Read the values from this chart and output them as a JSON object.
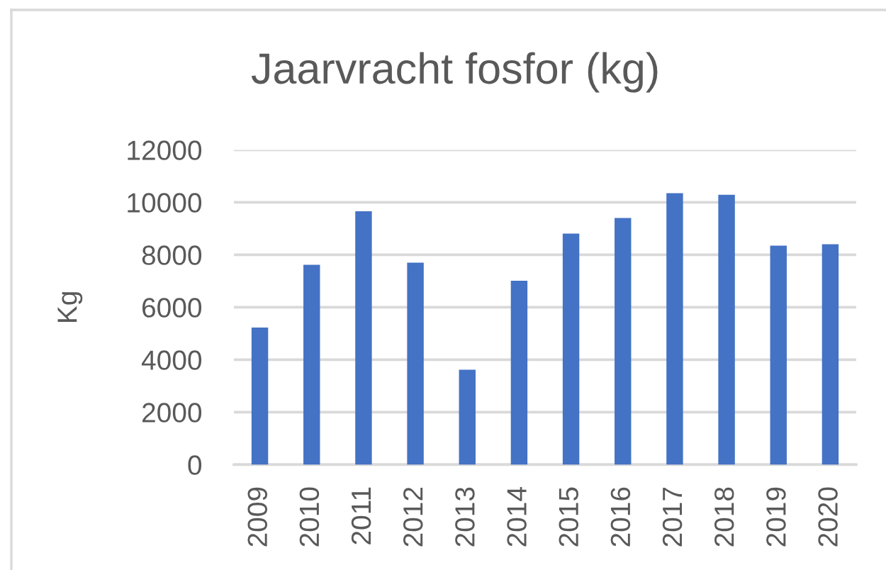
{
  "chart_data": {
    "type": "bar",
    "title": "Jaarvracht fosfor (kg)",
    "ylabel": "Kg",
    "categories": [
      "2009",
      "2010",
      "2011",
      "2012",
      "2013",
      "2014",
      "2015",
      "2016",
      "2017",
      "2018",
      "2019",
      "2020"
    ],
    "values": [
      5230,
      7620,
      9660,
      7700,
      3620,
      7010,
      8810,
      9400,
      10350,
      10290,
      8350,
      8400
    ],
    "color": "#4472c4",
    "ylim": [
      0,
      12000
    ],
    "yticks": [
      0,
      2000,
      4000,
      6000,
      8000,
      10000,
      12000
    ],
    "grid": "y"
  }
}
